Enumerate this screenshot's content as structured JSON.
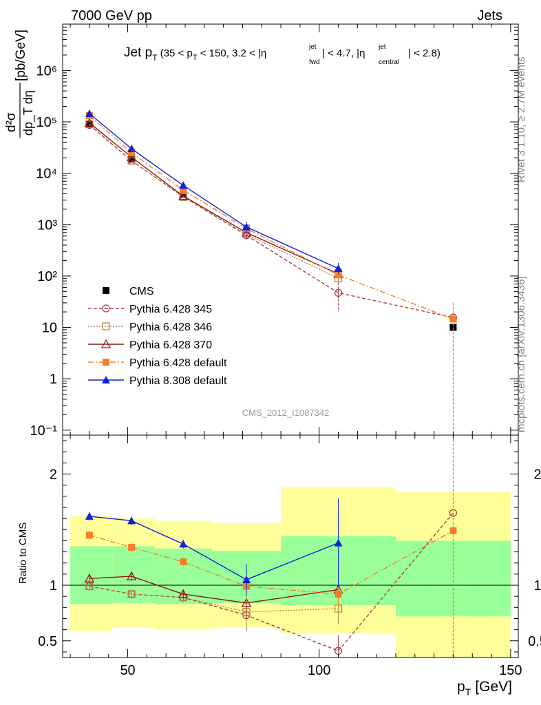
{
  "header": {
    "left": "7000 GeV pp",
    "right": "Jets"
  },
  "side_labels": {
    "rivet": "Rivet 3.1.10, ≥ 2.7M events",
    "mcplots": "mcplots.cern.ch [arXiv:1306.3436]"
  },
  "watermark": "CMS_2012_I1087342",
  "title": {
    "main": "Jet p",
    "sub_t": "T",
    "detail_a": " (35 < p",
    "detail_b": " < 150, 3.2 < |η",
    "jet": "jet",
    "fwd": "fwd",
    "detail_c": "| < 4.7, |η",
    "central": "central",
    "detail_d": "| < 2.8)"
  },
  "y_label": {
    "num": "d²σ",
    "den": "dp_T dη",
    "units": "[pb/GeV]"
  },
  "ratio_label": "Ratio to CMS",
  "x_label": {
    "p": "p",
    "sub": "T",
    "units": "[GeV]"
  },
  "legend": [
    "CMS",
    "Pythia 6.428 345",
    "Pythia 6.428 346",
    "Pythia 6.428 370",
    "Pythia 6.428 default",
    "Pythia 8.308 default"
  ],
  "colors": {
    "cms": "#000000",
    "p345": "#b03a48",
    "p346": "#b8864b",
    "p370": "#8b1a1a",
    "pdefault": "#f57f27",
    "p8": "#0d22d6",
    "band_inner": "#99ff99",
    "band_outer": "#ffff99"
  },
  "chart_data": {
    "type": "line",
    "x_axis": {
      "label": "p_T [GeV]",
      "range": [
        33,
        152
      ],
      "ticks": [
        "50",
        "100",
        "150"
      ]
    },
    "main_panel": {
      "y_scale": "log",
      "y_range": [
        0.08,
        8000000
      ],
      "y_ticks": [
        "10⁻¹",
        "1",
        "10",
        "10²",
        "10³",
        "10⁴",
        "10⁵",
        "10⁶"
      ],
      "series": [
        {
          "name": "CMS",
          "marker": "filled-square",
          "x": [
            40,
            51,
            64.5,
            81,
            105,
            135
          ],
          "y": [
            90000,
            19000,
            3900,
            850,
            115,
            10
          ]
        },
        {
          "name": "Pythia 6.428 345",
          "marker": "open-circle",
          "style": "dashed",
          "x": [
            40,
            51,
            64.5,
            81,
            105,
            135
          ],
          "y": [
            87000,
            17500,
            3500,
            620,
            47,
            15.5
          ]
        },
        {
          "name": "Pythia 6.428 346",
          "marker": "open-square",
          "style": "dotted",
          "x": [
            40,
            51,
            64.5,
            81,
            105
          ],
          "y": [
            90000,
            17700,
            3450,
            650,
            90
          ]
        },
        {
          "name": "Pythia 6.428 370",
          "marker": "open-triangle",
          "style": "solid",
          "x": [
            40,
            51,
            64.5,
            81,
            105
          ],
          "y": [
            96000,
            20500,
            3600,
            700,
            110
          ]
        },
        {
          "name": "Pythia 6.428 default",
          "marker": "filled-square",
          "style": "dash-dot",
          "x": [
            40,
            51,
            64.5,
            81,
            105,
            135
          ],
          "y": [
            132000,
            25000,
            4700,
            840,
            105,
            14.5
          ]
        },
        {
          "name": "Pythia 8.308 default",
          "marker": "filled-triangle",
          "style": "solid",
          "x": [
            40,
            51,
            64.5,
            81,
            105
          ],
          "y": [
            145000,
            30000,
            5800,
            900,
            140
          ]
        }
      ]
    },
    "ratio_panel": {
      "y_range": [
        0.35,
        2.35
      ],
      "y_ticks": [
        "0.5",
        "1",
        "2"
      ],
      "bands": [
        {
          "x": [
            35,
            46
          ],
          "inner": [
            0.83,
            1.35
          ],
          "outer": [
            0.59,
            1.62
          ]
        },
        {
          "x": [
            46,
            57
          ],
          "inner": [
            0.84,
            1.35
          ],
          "outer": [
            0.62,
            1.6
          ]
        },
        {
          "x": [
            57,
            72
          ],
          "inner": [
            0.83,
            1.33
          ],
          "outer": [
            0.6,
            1.58
          ]
        },
        {
          "x": [
            72,
            90
          ],
          "inner": [
            0.84,
            1.31
          ],
          "outer": [
            0.62,
            1.56
          ]
        },
        {
          "x": [
            90,
            120
          ],
          "inner": [
            0.82,
            1.44
          ],
          "outer": [
            0.57,
            1.88
          ]
        },
        {
          "x": [
            120,
            150
          ],
          "inner": [
            0.72,
            1.4
          ],
          "outer": [
            0.35,
            1.84
          ]
        }
      ],
      "series": [
        {
          "name": "Pythia 6.428 345",
          "x": [
            40,
            51,
            64.5,
            81,
            105,
            135
          ],
          "y": [
            0.99,
            0.92,
            0.89,
            0.73,
            0.41,
            1.65
          ]
        },
        {
          "name": "Pythia 6.428 346",
          "x": [
            40,
            51,
            64.5,
            81,
            105
          ],
          "y": [
            0.99,
            0.92,
            0.89,
            0.76,
            0.79
          ]
        },
        {
          "name": "Pythia 6.428 370",
          "x": [
            40,
            51,
            64.5,
            81,
            105
          ],
          "y": [
            1.06,
            1.08,
            0.92,
            0.84,
            0.96
          ]
        },
        {
          "name": "Pythia 6.428 default",
          "x": [
            40,
            51,
            64.5,
            81,
            105,
            135
          ],
          "y": [
            1.45,
            1.34,
            1.21,
            0.99,
            0.92,
            1.49
          ]
        },
        {
          "name": "Pythia 8.308 default",
          "x": [
            40,
            51,
            64.5,
            81,
            105
          ],
          "y": [
            1.62,
            1.58,
            1.37,
            1.05,
            1.38
          ]
        }
      ]
    }
  }
}
